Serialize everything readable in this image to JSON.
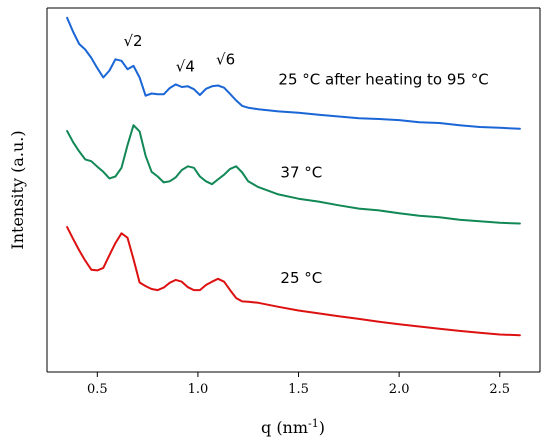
{
  "chart_data": {
    "type": "line",
    "xlabel": "q (nm",
    "xlabel_sup": "-1",
    "xlabel_suffix": ")",
    "ylabel": "Intensity (a.u.)",
    "xlim": [
      0.25,
      2.7
    ],
    "ylim": [
      0,
      100
    ],
    "xticks": [
      {
        "value": 0.5,
        "label": "0.5"
      },
      {
        "value": 1.0,
        "label": "1.0"
      },
      {
        "value": 1.5,
        "label": "1.5"
      },
      {
        "value": 2.0,
        "label": "2.0"
      },
      {
        "value": 2.5,
        "label": "2.5"
      }
    ],
    "y_tick_labels": false,
    "series": [
      {
        "name": "25 °C after heating to 95 °C",
        "color": "#1a66d6",
        "x": [
          0.35,
          0.38,
          0.41,
          0.44,
          0.47,
          0.5,
          0.53,
          0.56,
          0.59,
          0.62,
          0.65,
          0.68,
          0.71,
          0.74,
          0.77,
          0.8,
          0.83,
          0.86,
          0.89,
          0.92,
          0.95,
          0.98,
          1.01,
          1.04,
          1.07,
          1.1,
          1.13,
          1.16,
          1.19,
          1.22,
          1.25,
          1.3,
          1.4,
          1.5,
          1.6,
          1.7,
          1.8,
          1.9,
          2.0,
          2.1,
          2.2,
          2.3,
          2.4,
          2.5,
          2.6
        ],
        "y": [
          97.3,
          93.4,
          90.1,
          88.6,
          86.3,
          83.5,
          80.9,
          82.8,
          85.9,
          85.5,
          83.2,
          84.1,
          80.9,
          75.9,
          76.5,
          76.3,
          76.3,
          78.0,
          79.0,
          78.3,
          78.5,
          77.7,
          76.1,
          77.8,
          78.5,
          78.7,
          78.1,
          76.4,
          74.6,
          73.1,
          72.6,
          72.2,
          71.6,
          71.2,
          70.7,
          70.2,
          69.7,
          69.5,
          69.2,
          68.6,
          68.4,
          67.8,
          67.3,
          67.1,
          66.8
        ]
      },
      {
        "name": "37 °C",
        "color": "#118855",
        "x": [
          0.35,
          0.38,
          0.41,
          0.44,
          0.47,
          0.5,
          0.53,
          0.56,
          0.59,
          0.62,
          0.65,
          0.68,
          0.71,
          0.74,
          0.77,
          0.8,
          0.83,
          0.86,
          0.89,
          0.92,
          0.95,
          0.98,
          1.01,
          1.04,
          1.07,
          1.1,
          1.13,
          1.16,
          1.19,
          1.22,
          1.25,
          1.3,
          1.4,
          1.5,
          1.6,
          1.7,
          1.8,
          1.9,
          2.0,
          2.1,
          2.2,
          2.3,
          2.4,
          2.5,
          2.6
        ],
        "y": [
          66.2,
          63.1,
          60.6,
          58.4,
          57.9,
          56.4,
          55.0,
          53.2,
          53.7,
          56.1,
          62.3,
          67.8,
          66.1,
          59.4,
          55.0,
          53.7,
          52.1,
          52.4,
          53.5,
          55.5,
          56.5,
          56.1,
          53.7,
          52.4,
          51.6,
          52.9,
          54.2,
          55.8,
          56.5,
          54.8,
          52.4,
          50.8,
          48.8,
          47.6,
          46.8,
          45.8,
          44.9,
          44.4,
          43.6,
          42.9,
          42.5,
          41.8,
          41.4,
          41.0,
          40.8
        ]
      },
      {
        "name": "25 °C",
        "color": "#dd1111",
        "x": [
          0.35,
          0.38,
          0.41,
          0.44,
          0.47,
          0.5,
          0.53,
          0.56,
          0.59,
          0.62,
          0.65,
          0.68,
          0.71,
          0.74,
          0.77,
          0.8,
          0.83,
          0.86,
          0.89,
          0.92,
          0.95,
          0.98,
          1.01,
          1.04,
          1.07,
          1.1,
          1.13,
          1.16,
          1.19,
          1.22,
          1.25,
          1.3,
          1.4,
          1.5,
          1.6,
          1.7,
          1.8,
          1.9,
          2.0,
          2.1,
          2.2,
          2.3,
          2.4,
          2.5,
          2.6
        ],
        "y": [
          39.8,
          36.5,
          33.4,
          30.6,
          28.1,
          27.9,
          28.6,
          32.1,
          35.4,
          38.1,
          36.9,
          31.0,
          24.6,
          23.6,
          22.8,
          22.5,
          23.2,
          24.5,
          25.3,
          24.8,
          23.3,
          22.5,
          22.5,
          23.9,
          24.8,
          25.6,
          24.8,
          22.5,
          20.3,
          19.4,
          19.3,
          19.0,
          17.9,
          16.9,
          16.1,
          15.3,
          14.6,
          13.8,
          13.1,
          12.5,
          11.9,
          11.3,
          10.8,
          10.3,
          10.1
        ]
      }
    ],
    "annotations": [
      {
        "text": "√2",
        "x": 0.63,
        "y": 89.5
      },
      {
        "text": "√4",
        "x": 0.89,
        "y": 82.5
      },
      {
        "text": "√6",
        "x": 1.09,
        "y": 84.5
      },
      {
        "text": "25 °C after heating to 95 °C",
        "x": 1.4,
        "y": 79.0
      },
      {
        "text": "37 °C",
        "x": 1.41,
        "y": 53.5
      },
      {
        "text": "25 °C",
        "x": 1.41,
        "y": 24.5
      }
    ]
  }
}
